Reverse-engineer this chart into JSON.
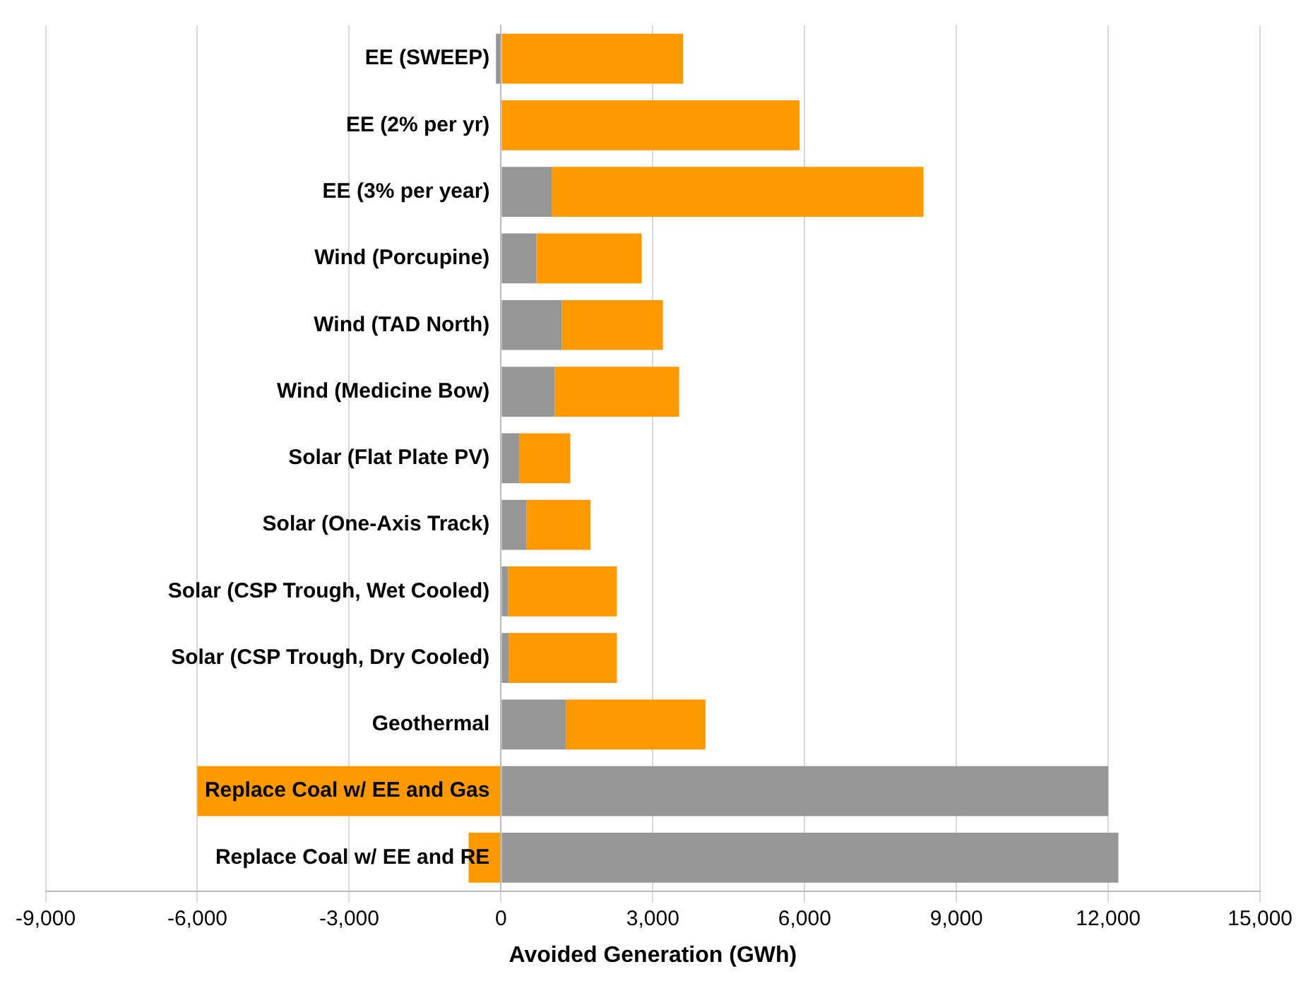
{
  "chart_data": {
    "type": "bar",
    "orientation": "horizontal",
    "stacked": true,
    "xlabel": "Avoided Generation (GWh)",
    "categories": [
      "EE (SWEEP)",
      "EE (2% per yr)",
      "EE (3% per year)",
      "Wind (Porcupine)",
      "Wind (TAD North)",
      "Wind (Medicine Bow)",
      "Solar (Flat Plate PV)",
      "Solar (One-Axis Track)",
      "Solar (CSP Trough, Wet Cooled)",
      "Solar (CSP Trough, Dry Cooled)",
      "Geothermal",
      "Replace Coal w/ EE and Gas",
      "Replace Coal w/ EE and RE"
    ],
    "series": [
      {
        "color": "#969696",
        "values": [
          -100,
          0,
          1000,
          700,
          1200,
          1060,
          360,
          500,
          140,
          150,
          1280,
          12000,
          12200
        ]
      },
      {
        "color": "#ff9900",
        "values": [
          3600,
          5900,
          7350,
          2080,
          2000,
          2460,
          1010,
          1270,
          2150,
          2140,
          2760,
          -6000,
          -640
        ]
      }
    ],
    "xlim": [
      -9000,
      15000
    ],
    "xticks": [
      {
        "value": -9000,
        "label": "-9,000"
      },
      {
        "value": -6000,
        "label": "-6,000"
      },
      {
        "value": -3000,
        "label": "-3,000"
      },
      0,
      {
        "value": 3000,
        "label": "3,000"
      },
      {
        "value": 6000,
        "label": "6,000"
      },
      {
        "value": 9000,
        "label": "9,000"
      },
      {
        "value": 12000,
        "label": "12,000"
      },
      {
        "value": 15000,
        "label": "15,000"
      }
    ],
    "grid": "x",
    "legend": false
  }
}
